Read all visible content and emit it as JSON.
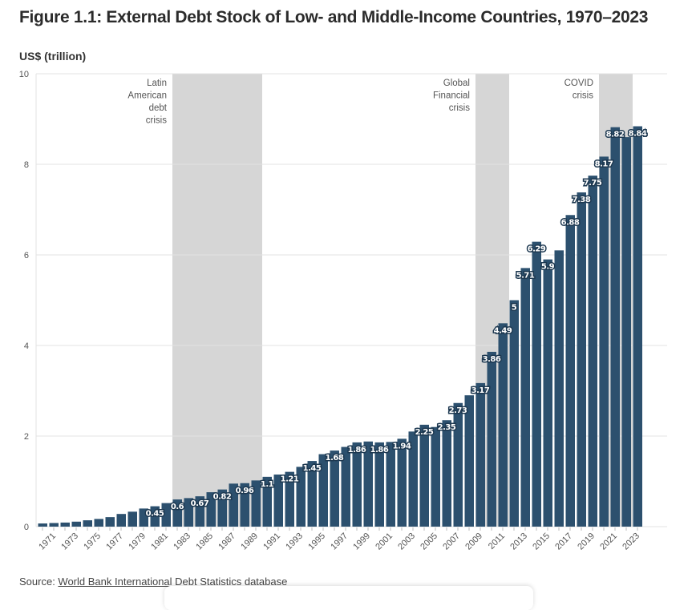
{
  "title": "Figure 1.1: External Debt Stock of Low- and Middle-Income Countries, 1970–2023",
  "source": {
    "prefix": "Source: ",
    "link_text": "World Bank International Debt Statistics database"
  },
  "chart_data": {
    "type": "bar",
    "title": "Figure 1.1: External Debt Stock of Low- and Middle-Income Countries, 1970–2023",
    "ylabel": "US$ (trillion)",
    "xlabel": "",
    "ylim": [
      0,
      10
    ],
    "yticks": [
      0,
      2,
      4,
      6,
      8,
      10
    ],
    "grid": true,
    "bar_color": "#2c506e",
    "shade_color": "#d6d6d6",
    "categories": [
      1970,
      1971,
      1972,
      1973,
      1974,
      1975,
      1976,
      1977,
      1978,
      1979,
      1980,
      1981,
      1982,
      1983,
      1984,
      1985,
      1986,
      1987,
      1988,
      1989,
      1990,
      1991,
      1992,
      1993,
      1994,
      1995,
      1996,
      1997,
      1998,
      1999,
      2000,
      2001,
      2002,
      2003,
      2004,
      2005,
      2006,
      2007,
      2008,
      2009,
      2010,
      2011,
      2012,
      2013,
      2014,
      2015,
      2016,
      2017,
      2018,
      2019,
      2020,
      2021,
      2022,
      2023
    ],
    "xtick_labels": [
      "1971",
      "1973",
      "1975",
      "1977",
      "1979",
      "1981",
      "1983",
      "1985",
      "1987",
      "1989",
      "1991",
      "1993",
      "1995",
      "1997",
      "1999",
      "2001",
      "2003",
      "2005",
      "2007",
      "2009",
      "2011",
      "2013",
      "2015",
      "2017",
      "2019",
      "2021",
      "2023"
    ],
    "values": [
      0.07,
      0.08,
      0.09,
      0.11,
      0.14,
      0.17,
      0.21,
      0.28,
      0.33,
      0.4,
      0.45,
      0.52,
      0.6,
      0.63,
      0.67,
      0.76,
      0.82,
      0.95,
      0.96,
      1.02,
      1.1,
      1.15,
      1.21,
      1.32,
      1.45,
      1.6,
      1.68,
      1.76,
      1.86,
      1.88,
      1.86,
      1.87,
      1.94,
      2.1,
      2.25,
      2.2,
      2.35,
      2.73,
      2.9,
      3.17,
      3.86,
      4.49,
      5.0,
      5.71,
      6.29,
      5.9,
      6.1,
      6.88,
      7.38,
      7.75,
      8.17,
      8.82,
      8.6,
      8.84
    ],
    "data_labels": [
      {
        "year": 1980,
        "text": "0.45"
      },
      {
        "year": 1982,
        "text": "0.6"
      },
      {
        "year": 1984,
        "text": "0.67"
      },
      {
        "year": 1986,
        "text": "0.82"
      },
      {
        "year": 1988,
        "text": "0.96"
      },
      {
        "year": 1990,
        "text": "1.1"
      },
      {
        "year": 1992,
        "text": "1.21"
      },
      {
        "year": 1994,
        "text": "1.45"
      },
      {
        "year": 1996,
        "text": "1.68"
      },
      {
        "year": 1998,
        "text": "1.86"
      },
      {
        "year": 2000,
        "text": "1.86"
      },
      {
        "year": 2002,
        "text": "1.94"
      },
      {
        "year": 2004,
        "text": "2.25"
      },
      {
        "year": 2006,
        "text": "2.35"
      },
      {
        "year": 2007,
        "text": "2.73"
      },
      {
        "year": 2009,
        "text": "3.17"
      },
      {
        "year": 2010,
        "text": "3.86"
      },
      {
        "year": 2011,
        "text": "4.49"
      },
      {
        "year": 2012,
        "text": "5"
      },
      {
        "year": 2013,
        "text": "5.71"
      },
      {
        "year": 2014,
        "text": "6.29"
      },
      {
        "year": 2015,
        "text": "5.9"
      },
      {
        "year": 2017,
        "text": "6.88"
      },
      {
        "year": 2018,
        "text": "7.38"
      },
      {
        "year": 2019,
        "text": "7.75"
      },
      {
        "year": 2020,
        "text": "8.17"
      },
      {
        "year": 2021,
        "text": "8.82"
      },
      {
        "year": 2023,
        "text": "8.84"
      }
    ],
    "shaded_periods": [
      {
        "start": 1982,
        "end": 1989,
        "label": [
          "Latin",
          "American",
          "debt",
          "crisis"
        ]
      },
      {
        "start": 2009,
        "end": 2011,
        "label": [
          "Global",
          "Financial",
          "crisis"
        ]
      },
      {
        "start": 2020,
        "end": 2022,
        "label": [
          "COVID",
          "crisis"
        ]
      }
    ]
  }
}
